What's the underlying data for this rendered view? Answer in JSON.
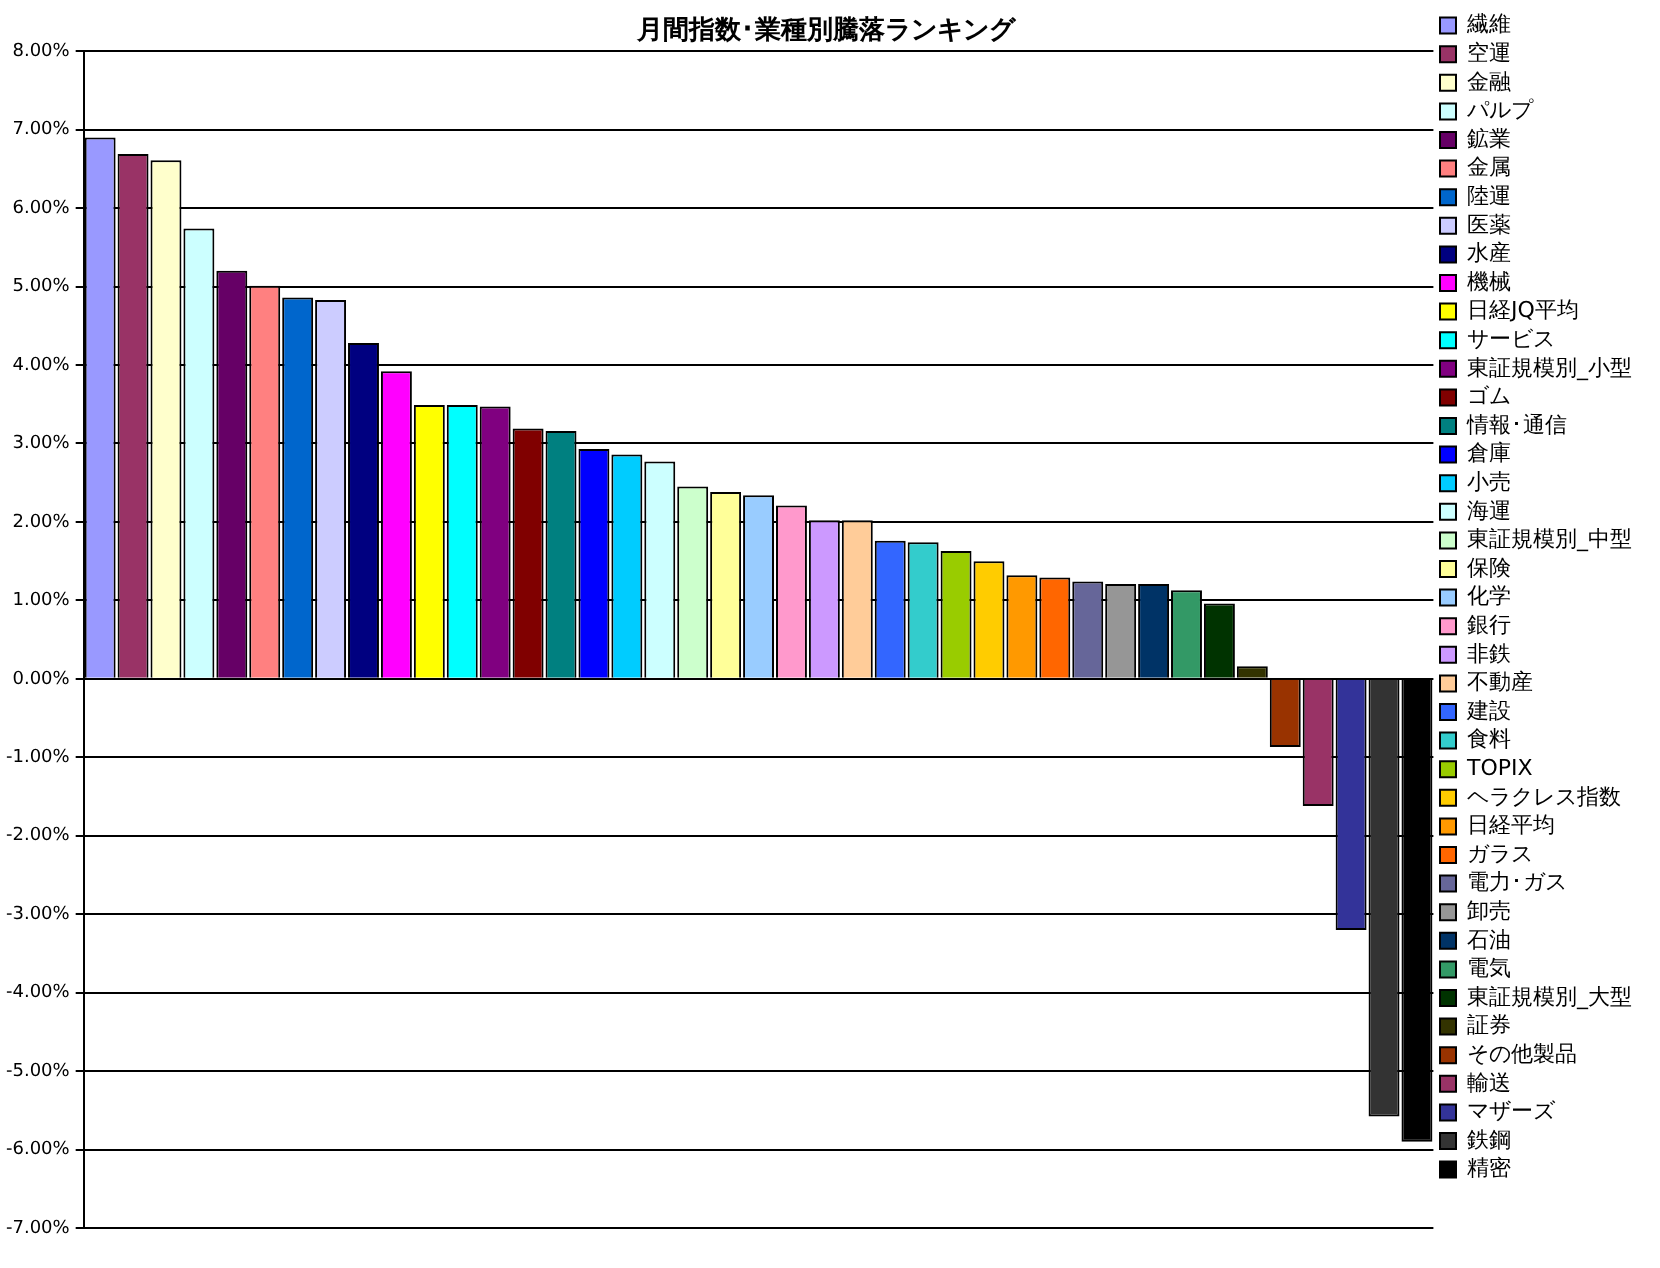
{
  "chart_data": {
    "type": "bar",
    "title": "月間指数･業種別騰落ランキング",
    "categories": [
      null,
      null,
      null,
      null,
      null,
      null,
      null,
      null,
      null,
      null,
      null,
      null,
      null,
      null,
      null,
      null,
      null,
      null,
      null,
      null,
      null,
      null,
      null,
      null,
      null,
      null,
      null,
      null,
      null,
      null,
      null,
      null,
      null,
      null,
      null,
      null,
      null,
      null,
      null,
      null,
      null
    ],
    "ylim": [
      -7,
      8
    ],
    "yticks": [
      {
        "value": -7,
        "label": "-7.00%"
      },
      {
        "value": -6,
        "label": "-6.00%"
      },
      {
        "value": -5,
        "label": "-5.00%"
      },
      {
        "value": -4,
        "label": "-4.00%"
      },
      {
        "value": -3,
        "label": "-3.00%"
      },
      {
        "value": -2,
        "label": "-2.00%"
      },
      {
        "value": -1,
        "label": "-1.00%"
      },
      {
        "value": 0,
        "label": "0.00%"
      },
      {
        "value": 1,
        "label": "1.00%"
      },
      {
        "value": 2,
        "label": "2.00%"
      },
      {
        "value": 3,
        "label": "3.00%"
      },
      {
        "value": 4,
        "label": "4.00%"
      },
      {
        "value": 5,
        "label": "5.00%"
      },
      {
        "value": 6,
        "label": "6.00%"
      },
      {
        "value": 7,
        "label": "7.00%"
      },
      {
        "value": 8,
        "label": "8.00%"
      }
    ],
    "grid": "y",
    "legend": "right",
    "tick_labels": "y",
    "series": [
      {
        "name": "繊維",
        "color": "#9999ff",
        "values": [
          6.9,
          null,
          null,
          null,
          null,
          null,
          null,
          null,
          null,
          null,
          null,
          null,
          null,
          null,
          null,
          null,
          null,
          null,
          null,
          null,
          null,
          null,
          null,
          null,
          null,
          null,
          null,
          null,
          null,
          null,
          null,
          null,
          null,
          null,
          null,
          null,
          null,
          null,
          null,
          null,
          null
        ]
      },
      {
        "name": "空運",
        "color": "#993366",
        "values": [
          null,
          6.69,
          null,
          null,
          null,
          null,
          null,
          null,
          null,
          null,
          null,
          null,
          null,
          null,
          null,
          null,
          null,
          null,
          null,
          null,
          null,
          null,
          null,
          null,
          null,
          null,
          null,
          null,
          null,
          null,
          null,
          null,
          null,
          null,
          null,
          null,
          null,
          null,
          null,
          null,
          null
        ]
      },
      {
        "name": "金融",
        "color": "#ffffcc",
        "values": [
          null,
          null,
          6.61,
          null,
          null,
          null,
          null,
          null,
          null,
          null,
          null,
          null,
          null,
          null,
          null,
          null,
          null,
          null,
          null,
          null,
          null,
          null,
          null,
          null,
          null,
          null,
          null,
          null,
          null,
          null,
          null,
          null,
          null,
          null,
          null,
          null,
          null,
          null,
          null,
          null,
          null
        ]
      },
      {
        "name": "パルプ",
        "color": "#ccffff",
        "values": [
          null,
          null,
          null,
          5.74,
          null,
          null,
          null,
          null,
          null,
          null,
          null,
          null,
          null,
          null,
          null,
          null,
          null,
          null,
          null,
          null,
          null,
          null,
          null,
          null,
          null,
          null,
          null,
          null,
          null,
          null,
          null,
          null,
          null,
          null,
          null,
          null,
          null,
          null,
          null,
          null,
          null
        ]
      },
      {
        "name": "鉱業",
        "color": "#660066",
        "values": [
          null,
          null,
          null,
          null,
          5.2,
          null,
          null,
          null,
          null,
          null,
          null,
          null,
          null,
          null,
          null,
          null,
          null,
          null,
          null,
          null,
          null,
          null,
          null,
          null,
          null,
          null,
          null,
          null,
          null,
          null,
          null,
          null,
          null,
          null,
          null,
          null,
          null,
          null,
          null,
          null,
          null
        ]
      },
      {
        "name": "金属",
        "color": "#ff8080",
        "values": [
          null,
          null,
          null,
          null,
          null,
          5.01,
          null,
          null,
          null,
          null,
          null,
          null,
          null,
          null,
          null,
          null,
          null,
          null,
          null,
          null,
          null,
          null,
          null,
          null,
          null,
          null,
          null,
          null,
          null,
          null,
          null,
          null,
          null,
          null,
          null,
          null,
          null,
          null,
          null,
          null,
          null
        ]
      },
      {
        "name": "陸運",
        "color": "#0066cc",
        "values": [
          null,
          null,
          null,
          null,
          null,
          null,
          4.86,
          null,
          null,
          null,
          null,
          null,
          null,
          null,
          null,
          null,
          null,
          null,
          null,
          null,
          null,
          null,
          null,
          null,
          null,
          null,
          null,
          null,
          null,
          null,
          null,
          null,
          null,
          null,
          null,
          null,
          null,
          null,
          null,
          null,
          null
        ]
      },
      {
        "name": "医薬",
        "color": "#ccccff",
        "values": [
          null,
          null,
          null,
          null,
          null,
          null,
          null,
          4.83,
          null,
          null,
          null,
          null,
          null,
          null,
          null,
          null,
          null,
          null,
          null,
          null,
          null,
          null,
          null,
          null,
          null,
          null,
          null,
          null,
          null,
          null,
          null,
          null,
          null,
          null,
          null,
          null,
          null,
          null,
          null,
          null,
          null
        ]
      },
      {
        "name": "水産",
        "color": "#000080",
        "values": [
          null,
          null,
          null,
          null,
          null,
          null,
          null,
          null,
          4.28,
          null,
          null,
          null,
          null,
          null,
          null,
          null,
          null,
          null,
          null,
          null,
          null,
          null,
          null,
          null,
          null,
          null,
          null,
          null,
          null,
          null,
          null,
          null,
          null,
          null,
          null,
          null,
          null,
          null,
          null,
          null,
          null
        ]
      },
      {
        "name": "機械",
        "color": "#ff00ff",
        "values": [
          null,
          null,
          null,
          null,
          null,
          null,
          null,
          null,
          null,
          3.92,
          null,
          null,
          null,
          null,
          null,
          null,
          null,
          null,
          null,
          null,
          null,
          null,
          null,
          null,
          null,
          null,
          null,
          null,
          null,
          null,
          null,
          null,
          null,
          null,
          null,
          null,
          null,
          null,
          null,
          null,
          null
        ]
      },
      {
        "name": "日経JQ平均",
        "color": "#ffff00",
        "values": [
          null,
          null,
          null,
          null,
          null,
          null,
          null,
          null,
          null,
          null,
          3.49,
          null,
          null,
          null,
          null,
          null,
          null,
          null,
          null,
          null,
          null,
          null,
          null,
          null,
          null,
          null,
          null,
          null,
          null,
          null,
          null,
          null,
          null,
          null,
          null,
          null,
          null,
          null,
          null,
          null,
          null
        ]
      },
      {
        "name": "サービス",
        "color": "#00ffff",
        "values": [
          null,
          null,
          null,
          null,
          null,
          null,
          null,
          null,
          null,
          null,
          null,
          3.49,
          null,
          null,
          null,
          null,
          null,
          null,
          null,
          null,
          null,
          null,
          null,
          null,
          null,
          null,
          null,
          null,
          null,
          null,
          null,
          null,
          null,
          null,
          null,
          null,
          null,
          null,
          null,
          null,
          null
        ]
      },
      {
        "name": "東証規模別_小型",
        "color": "#800080",
        "values": [
          null,
          null,
          null,
          null,
          null,
          null,
          null,
          null,
          null,
          null,
          null,
          null,
          3.47,
          null,
          null,
          null,
          null,
          null,
          null,
          null,
          null,
          null,
          null,
          null,
          null,
          null,
          null,
          null,
          null,
          null,
          null,
          null,
          null,
          null,
          null,
          null,
          null,
          null,
          null,
          null,
          null
        ]
      },
      {
        "name": "ゴム",
        "color": "#800000",
        "values": [
          null,
          null,
          null,
          null,
          null,
          null,
          null,
          null,
          null,
          null,
          null,
          null,
          null,
          3.19,
          null,
          null,
          null,
          null,
          null,
          null,
          null,
          null,
          null,
          null,
          null,
          null,
          null,
          null,
          null,
          null,
          null,
          null,
          null,
          null,
          null,
          null,
          null,
          null,
          null,
          null,
          null
        ]
      },
      {
        "name": "情報･通信",
        "color": "#008080",
        "values": [
          null,
          null,
          null,
          null,
          null,
          null,
          null,
          null,
          null,
          null,
          null,
          null,
          null,
          null,
          3.16,
          null,
          null,
          null,
          null,
          null,
          null,
          null,
          null,
          null,
          null,
          null,
          null,
          null,
          null,
          null,
          null,
          null,
          null,
          null,
          null,
          null,
          null,
          null,
          null,
          null,
          null
        ]
      },
      {
        "name": "倉庫",
        "color": "#0000ff",
        "values": [
          null,
          null,
          null,
          null,
          null,
          null,
          null,
          null,
          null,
          null,
          null,
          null,
          null,
          null,
          null,
          2.93,
          null,
          null,
          null,
          null,
          null,
          null,
          null,
          null,
          null,
          null,
          null,
          null,
          null,
          null,
          null,
          null,
          null,
          null,
          null,
          null,
          null,
          null,
          null,
          null,
          null
        ]
      },
      {
        "name": "小売",
        "color": "#00ccff",
        "values": [
          null,
          null,
          null,
          null,
          null,
          null,
          null,
          null,
          null,
          null,
          null,
          null,
          null,
          null,
          null,
          null,
          2.86,
          null,
          null,
          null,
          null,
          null,
          null,
          null,
          null,
          null,
          null,
          null,
          null,
          null,
          null,
          null,
          null,
          null,
          null,
          null,
          null,
          null,
          null,
          null,
          null
        ]
      },
      {
        "name": "海運",
        "color": "#ccffff",
        "values": [
          null,
          null,
          null,
          null,
          null,
          null,
          null,
          null,
          null,
          null,
          null,
          null,
          null,
          null,
          null,
          null,
          null,
          2.77,
          null,
          null,
          null,
          null,
          null,
          null,
          null,
          null,
          null,
          null,
          null,
          null,
          null,
          null,
          null,
          null,
          null,
          null,
          null,
          null,
          null,
          null,
          null
        ]
      },
      {
        "name": "東証規模別_中型",
        "color": "#ccffcc",
        "values": [
          null,
          null,
          null,
          null,
          null,
          null,
          null,
          null,
          null,
          null,
          null,
          null,
          null,
          null,
          null,
          null,
          null,
          null,
          2.45,
          null,
          null,
          null,
          null,
          null,
          null,
          null,
          null,
          null,
          null,
          null,
          null,
          null,
          null,
          null,
          null,
          null,
          null,
          null,
          null,
          null,
          null
        ]
      },
      {
        "name": "保険",
        "color": "#ffff99",
        "values": [
          null,
          null,
          null,
          null,
          null,
          null,
          null,
          null,
          null,
          null,
          null,
          null,
          null,
          null,
          null,
          null,
          null,
          null,
          null,
          2.38,
          null,
          null,
          null,
          null,
          null,
          null,
          null,
          null,
          null,
          null,
          null,
          null,
          null,
          null,
          null,
          null,
          null,
          null,
          null,
          null,
          null
        ]
      },
      {
        "name": "化学",
        "color": "#99ccff",
        "values": [
          null,
          null,
          null,
          null,
          null,
          null,
          null,
          null,
          null,
          null,
          null,
          null,
          null,
          null,
          null,
          null,
          null,
          null,
          null,
          null,
          2.34,
          null,
          null,
          null,
          null,
          null,
          null,
          null,
          null,
          null,
          null,
          null,
          null,
          null,
          null,
          null,
          null,
          null,
          null,
          null,
          null
        ]
      },
      {
        "name": "銀行",
        "color": "#ff99cc",
        "values": [
          null,
          null,
          null,
          null,
          null,
          null,
          null,
          null,
          null,
          null,
          null,
          null,
          null,
          null,
          null,
          null,
          null,
          null,
          null,
          null,
          null,
          2.21,
          null,
          null,
          null,
          null,
          null,
          null,
          null,
          null,
          null,
          null,
          null,
          null,
          null,
          null,
          null,
          null,
          null,
          null,
          null
        ]
      },
      {
        "name": "非鉄",
        "color": "#cc99ff",
        "values": [
          null,
          null,
          null,
          null,
          null,
          null,
          null,
          null,
          null,
          null,
          null,
          null,
          null,
          null,
          null,
          null,
          null,
          null,
          null,
          null,
          null,
          null,
          2.02,
          null,
          null,
          null,
          null,
          null,
          null,
          null,
          null,
          null,
          null,
          null,
          null,
          null,
          null,
          null,
          null,
          null,
          null
        ]
      },
      {
        "name": "不動産",
        "color": "#ffcc99",
        "values": [
          null,
          null,
          null,
          null,
          null,
          null,
          null,
          null,
          null,
          null,
          null,
          null,
          null,
          null,
          null,
          null,
          null,
          null,
          null,
          null,
          null,
          null,
          null,
          2.02,
          null,
          null,
          null,
          null,
          null,
          null,
          null,
          null,
          null,
          null,
          null,
          null,
          null,
          null,
          null,
          null,
          null
        ]
      },
      {
        "name": "建設",
        "color": "#3366ff",
        "values": [
          null,
          null,
          null,
          null,
          null,
          null,
          null,
          null,
          null,
          null,
          null,
          null,
          null,
          null,
          null,
          null,
          null,
          null,
          null,
          null,
          null,
          null,
          null,
          null,
          1.76,
          null,
          null,
          null,
          null,
          null,
          null,
          null,
          null,
          null,
          null,
          null,
          null,
          null,
          null,
          null,
          null
        ]
      },
      {
        "name": "食料",
        "color": "#33cccc",
        "values": [
          null,
          null,
          null,
          null,
          null,
          null,
          null,
          null,
          null,
          null,
          null,
          null,
          null,
          null,
          null,
          null,
          null,
          null,
          null,
          null,
          null,
          null,
          null,
          null,
          null,
          1.74,
          null,
          null,
          null,
          null,
          null,
          null,
          null,
          null,
          null,
          null,
          null,
          null,
          null,
          null,
          null
        ]
      },
      {
        "name": "TOPIX",
        "color": "#99cc00",
        "values": [
          null,
          null,
          null,
          null,
          null,
          null,
          null,
          null,
          null,
          null,
          null,
          null,
          null,
          null,
          null,
          null,
          null,
          null,
          null,
          null,
          null,
          null,
          null,
          null,
          null,
          null,
          1.63,
          null,
          null,
          null,
          null,
          null,
          null,
          null,
          null,
          null,
          null,
          null,
          null,
          null,
          null
        ]
      },
      {
        "name": "ヘラクレス指数",
        "color": "#ffcc00",
        "values": [
          null,
          null,
          null,
          null,
          null,
          null,
          null,
          null,
          null,
          null,
          null,
          null,
          null,
          null,
          null,
          null,
          null,
          null,
          null,
          null,
          null,
          null,
          null,
          null,
          null,
          null,
          null,
          1.5,
          null,
          null,
          null,
          null,
          null,
          null,
          null,
          null,
          null,
          null,
          null,
          null,
          null
        ]
      },
      {
        "name": "日経平均",
        "color": "#ff9900",
        "values": [
          null,
          null,
          null,
          null,
          null,
          null,
          null,
          null,
          null,
          null,
          null,
          null,
          null,
          null,
          null,
          null,
          null,
          null,
          null,
          null,
          null,
          null,
          null,
          null,
          null,
          null,
          null,
          null,
          1.32,
          null,
          null,
          null,
          null,
          null,
          null,
          null,
          null,
          null,
          null,
          null,
          null
        ]
      },
      {
        "name": "ガラス",
        "color": "#ff6600",
        "values": [
          null,
          null,
          null,
          null,
          null,
          null,
          null,
          null,
          null,
          null,
          null,
          null,
          null,
          null,
          null,
          null,
          null,
          null,
          null,
          null,
          null,
          null,
          null,
          null,
          null,
          null,
          null,
          null,
          null,
          1.29,
          null,
          null,
          null,
          null,
          null,
          null,
          null,
          null,
          null,
          null,
          null
        ]
      },
      {
        "name": "電力･ガス",
        "color": "#666699",
        "values": [
          null,
          null,
          null,
          null,
          null,
          null,
          null,
          null,
          null,
          null,
          null,
          null,
          null,
          null,
          null,
          null,
          null,
          null,
          null,
          null,
          null,
          null,
          null,
          null,
          null,
          null,
          null,
          null,
          null,
          null,
          1.24,
          null,
          null,
          null,
          null,
          null,
          null,
          null,
          null,
          null,
          null
        ]
      },
      {
        "name": "卸売",
        "color": "#969696",
        "values": [
          null,
          null,
          null,
          null,
          null,
          null,
          null,
          null,
          null,
          null,
          null,
          null,
          null,
          null,
          null,
          null,
          null,
          null,
          null,
          null,
          null,
          null,
          null,
          null,
          null,
          null,
          null,
          null,
          null,
          null,
          null,
          1.21,
          null,
          null,
          null,
          null,
          null,
          null,
          null,
          null,
          null
        ]
      },
      {
        "name": "石油",
        "color": "#003366",
        "values": [
          null,
          null,
          null,
          null,
          null,
          null,
          null,
          null,
          null,
          null,
          null,
          null,
          null,
          null,
          null,
          null,
          null,
          null,
          null,
          null,
          null,
          null,
          null,
          null,
          null,
          null,
          null,
          null,
          null,
          null,
          null,
          null,
          1.21,
          null,
          null,
          null,
          null,
          null,
          null,
          null,
          null
        ]
      },
      {
        "name": "電気",
        "color": "#339966",
        "values": [
          null,
          null,
          null,
          null,
          null,
          null,
          null,
          null,
          null,
          null,
          null,
          null,
          null,
          null,
          null,
          null,
          null,
          null,
          null,
          null,
          null,
          null,
          null,
          null,
          null,
          null,
          null,
          null,
          null,
          null,
          null,
          null,
          null,
          1.13,
          null,
          null,
          null,
          null,
          null,
          null,
          null
        ]
      },
      {
        "name": "東証規模別_大型",
        "color": "#003300",
        "values": [
          null,
          null,
          null,
          null,
          null,
          null,
          null,
          null,
          null,
          null,
          null,
          null,
          null,
          null,
          null,
          null,
          null,
          null,
          null,
          null,
          null,
          null,
          null,
          null,
          null,
          null,
          null,
          null,
          null,
          null,
          null,
          null,
          null,
          null,
          0.96,
          null,
          null,
          null,
          null,
          null,
          null
        ]
      },
      {
        "name": "証券",
        "color": "#333300",
        "values": [
          null,
          null,
          null,
          null,
          null,
          null,
          null,
          null,
          null,
          null,
          null,
          null,
          null,
          null,
          null,
          null,
          null,
          null,
          null,
          null,
          null,
          null,
          null,
          null,
          null,
          null,
          null,
          null,
          null,
          null,
          null,
          null,
          null,
          null,
          null,
          0.16,
          null,
          null,
          null,
          null,
          null
        ]
      },
      {
        "name": "その他製品",
        "color": "#993300",
        "values": [
          null,
          null,
          null,
          null,
          null,
          null,
          null,
          null,
          null,
          null,
          null,
          null,
          null,
          null,
          null,
          null,
          null,
          null,
          null,
          null,
          null,
          null,
          null,
          null,
          null,
          null,
          null,
          null,
          null,
          null,
          null,
          null,
          null,
          null,
          null,
          null,
          -0.87,
          null,
          null,
          null,
          null
        ]
      },
      {
        "name": "輸送",
        "color": "#993366",
        "values": [
          null,
          null,
          null,
          null,
          null,
          null,
          null,
          null,
          null,
          null,
          null,
          null,
          null,
          null,
          null,
          null,
          null,
          null,
          null,
          null,
          null,
          null,
          null,
          null,
          null,
          null,
          null,
          null,
          null,
          null,
          null,
          null,
          null,
          null,
          null,
          null,
          null,
          -1.62,
          null,
          null,
          null
        ]
      },
      {
        "name": "マザーズ",
        "color": "#333399",
        "values": [
          null,
          null,
          null,
          null,
          null,
          null,
          null,
          null,
          null,
          null,
          null,
          null,
          null,
          null,
          null,
          null,
          null,
          null,
          null,
          null,
          null,
          null,
          null,
          null,
          null,
          null,
          null,
          null,
          null,
          null,
          null,
          null,
          null,
          null,
          null,
          null,
          null,
          null,
          -3.2,
          null,
          null
        ]
      },
      {
        "name": "鉄鋼",
        "color": "#333333",
        "values": [
          null,
          null,
          null,
          null,
          null,
          null,
          null,
          null,
          null,
          null,
          null,
          null,
          null,
          null,
          null,
          null,
          null,
          null,
          null,
          null,
          null,
          null,
          null,
          null,
          null,
          null,
          null,
          null,
          null,
          null,
          null,
          null,
          null,
          null,
          null,
          null,
          null,
          null,
          null,
          -5.58,
          null
        ]
      },
      {
        "name": "精密",
        "color": "#000000",
        "values": [
          null,
          null,
          null,
          null,
          null,
          null,
          null,
          null,
          null,
          null,
          null,
          null,
          null,
          null,
          null,
          null,
          null,
          null,
          null,
          null,
          null,
          null,
          null,
          null,
          null,
          null,
          null,
          null,
          null,
          null,
          null,
          null,
          null,
          null,
          null,
          null,
          null,
          null,
          null,
          null,
          -5.9
        ]
      }
    ]
  }
}
